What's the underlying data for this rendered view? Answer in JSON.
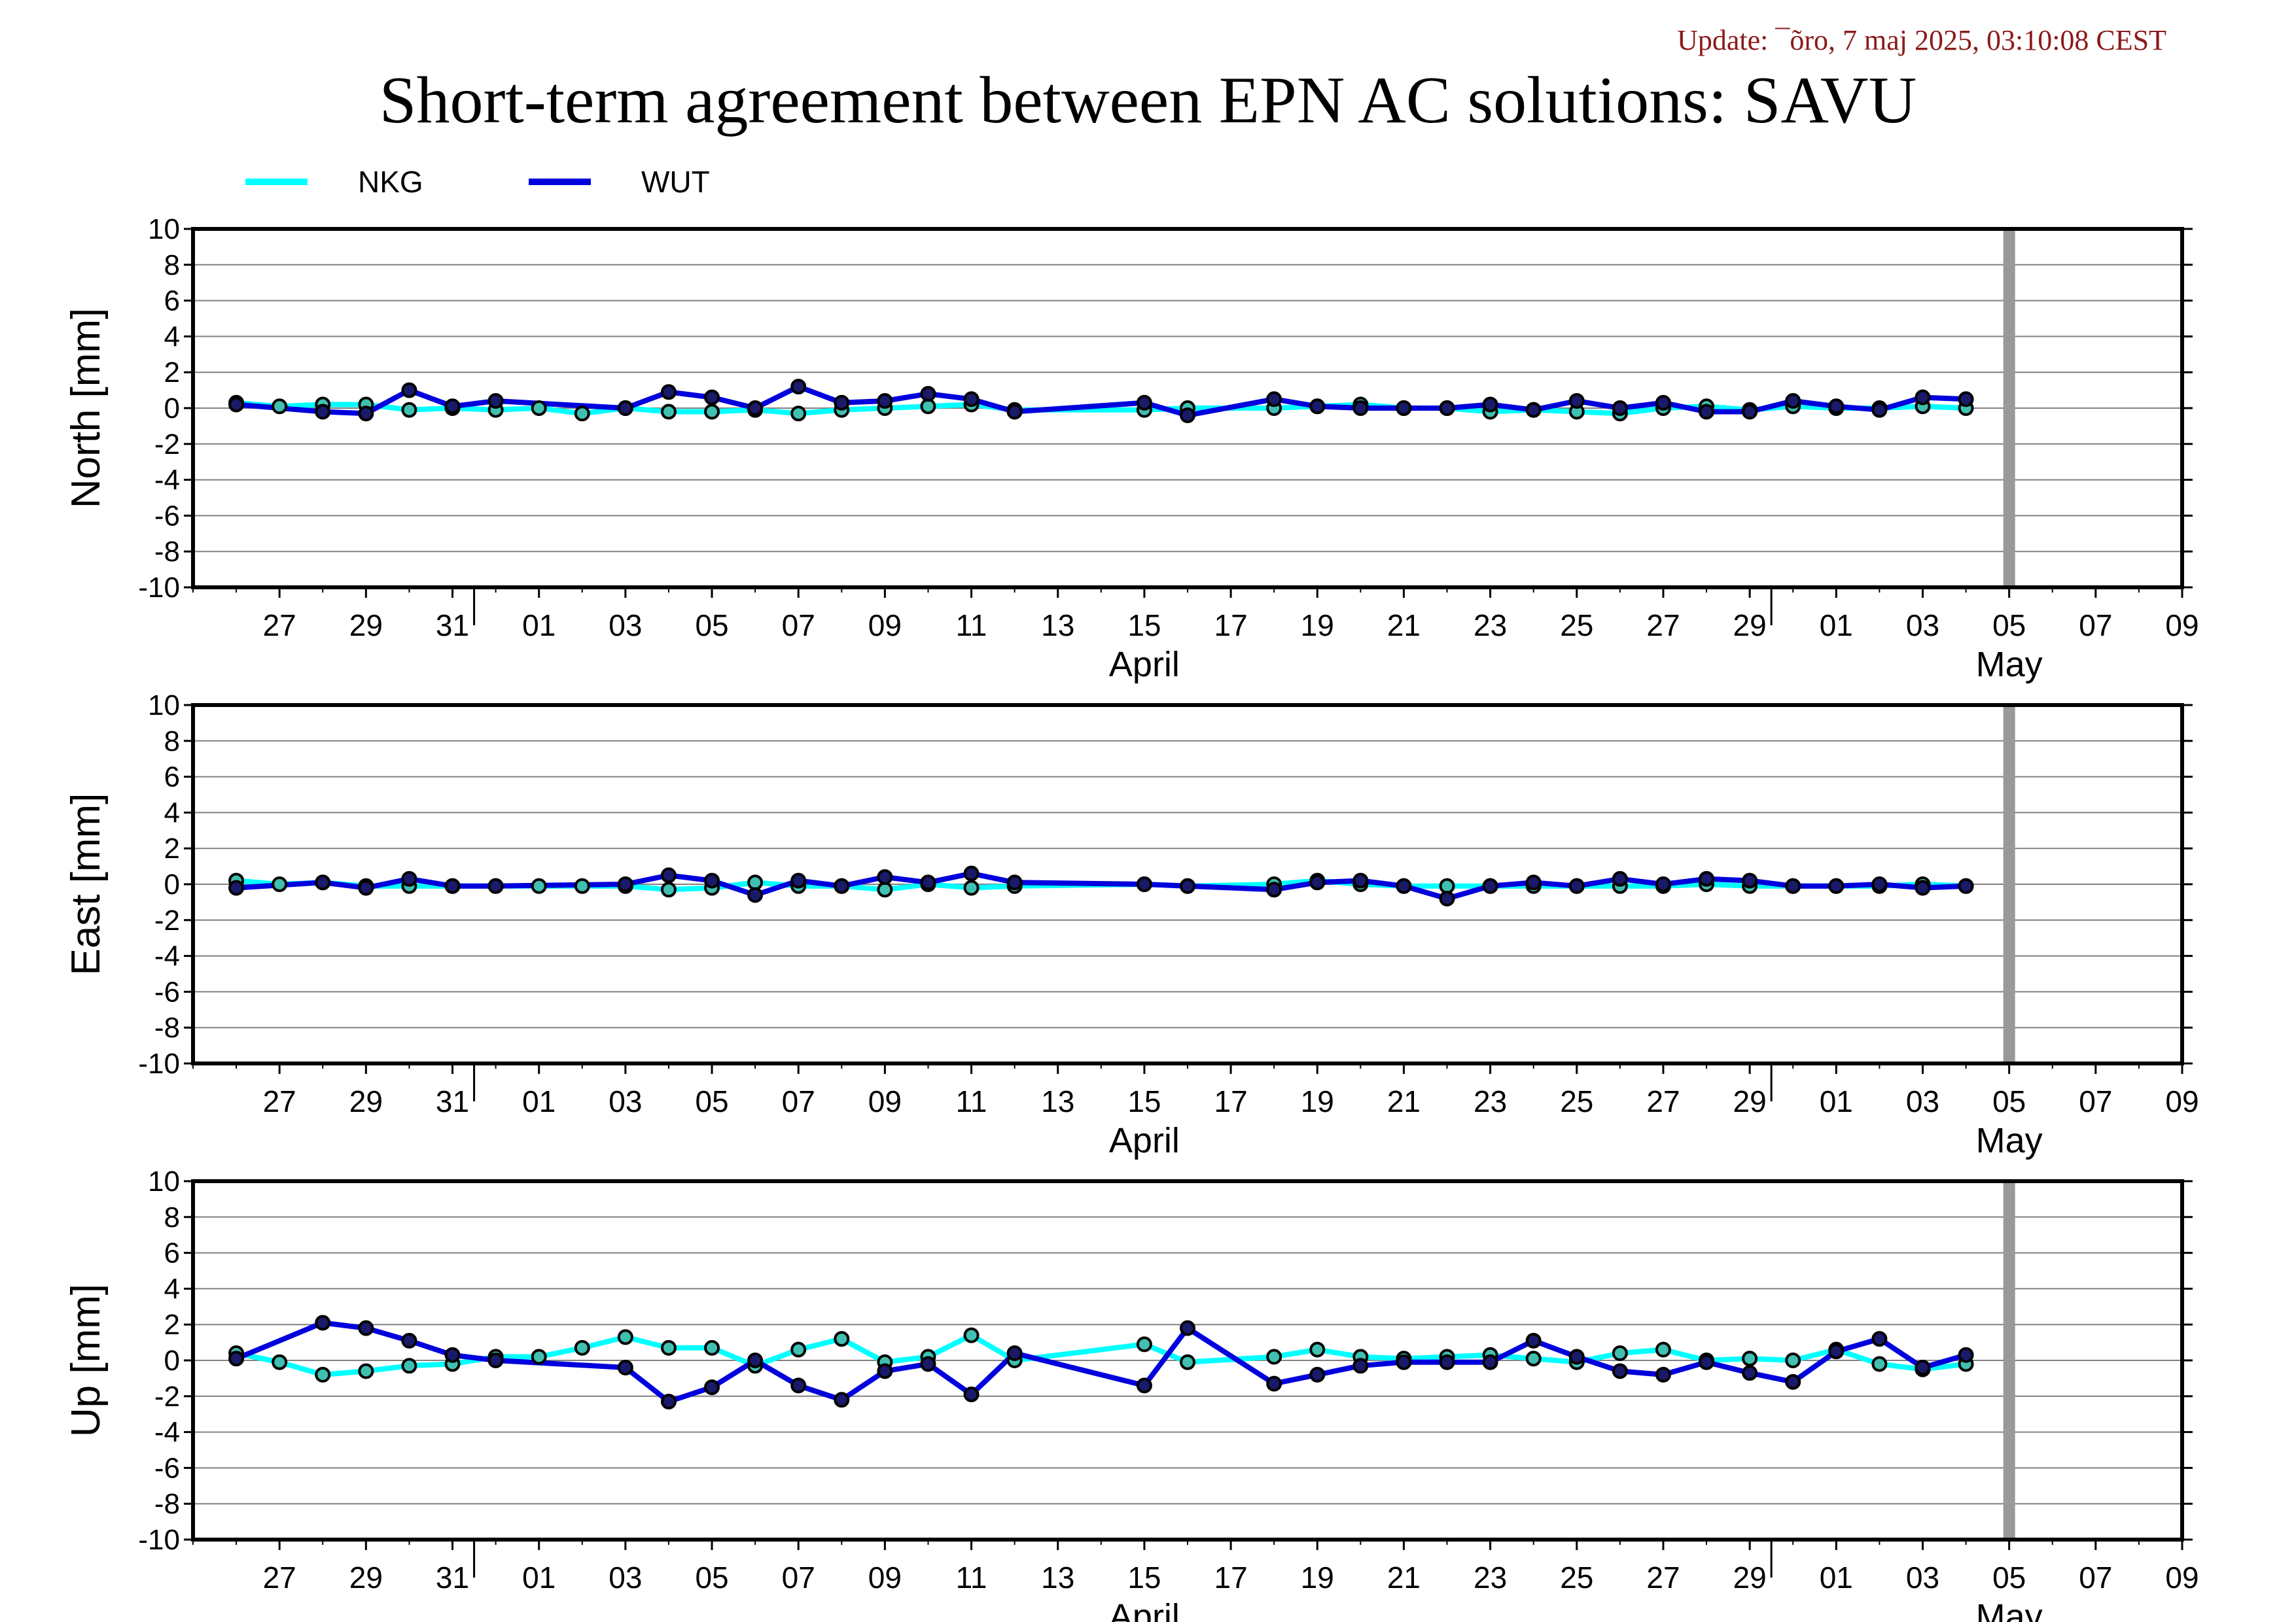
{
  "header": {
    "update_text": "Update: ¯õro, 7 maj 2025, 03:10:08 CEST",
    "title": "Short-term agreement between EPN AC solutions: SAVU"
  },
  "colors": {
    "NKG": "#00ffff",
    "WUT": "#0000dd",
    "marker_edge": "#000000",
    "marker_fill_NKG": "#40c0b0",
    "marker_fill_WUT": "#1a1a6a",
    "now_line": "#999999",
    "grid": "#808080"
  },
  "chart_data": [
    {
      "type": "line",
      "ylabel": "North [mm]",
      "ylim": [
        -10,
        10
      ],
      "yticks": [
        "10",
        "8",
        "6",
        "4",
        "2",
        "0",
        "-2",
        "-4",
        "-6",
        "-8",
        "-10"
      ],
      "xlim": [
        "2025-03-25",
        "2025-05-10"
      ],
      "x_tick_labels": [
        "27",
        "29",
        "31",
        "01",
        "03",
        "05",
        "07",
        "09",
        "11",
        "13",
        "15",
        "17",
        "19",
        "21",
        "23",
        "25",
        "27",
        "29",
        "01",
        "03",
        "05",
        "07",
        "09"
      ],
      "month_labels": [
        "April",
        "May"
      ],
      "grid": true,
      "legend": "top-left",
      "now_marker": "2025-05-06",
      "series": [
        {
          "name": "NKG",
          "x": [
            "2025-03-26",
            "2025-03-27",
            "2025-03-28",
            "2025-03-29",
            "2025-03-30",
            "2025-03-31",
            "2025-04-01",
            "2025-04-02",
            "2025-04-03",
            "2025-04-04",
            "2025-04-05",
            "2025-04-06",
            "2025-04-07",
            "2025-04-08",
            "2025-04-09",
            "2025-04-10",
            "2025-04-11",
            "2025-04-12",
            "2025-04-13",
            "2025-04-16",
            "2025-04-17",
            "2025-04-19",
            "2025-04-20",
            "2025-04-21",
            "2025-04-22",
            "2025-04-23",
            "2025-04-24",
            "2025-04-25",
            "2025-04-26",
            "2025-04-27",
            "2025-04-28",
            "2025-04-29",
            "2025-04-30",
            "2025-05-01",
            "2025-05-02",
            "2025-05-03",
            "2025-05-04",
            "2025-05-05"
          ],
          "values": [
            0.3,
            0.1,
            0.2,
            0.2,
            -0.1,
            0.0,
            -0.1,
            0.0,
            -0.3,
            0.0,
            -0.2,
            -0.2,
            -0.1,
            -0.3,
            -0.1,
            0.0,
            0.1,
            0.2,
            -0.1,
            -0.1,
            0.0,
            0.0,
            0.1,
            0.2,
            0.0,
            0.0,
            -0.2,
            -0.1,
            -0.2,
            -0.3,
            0.0,
            0.1,
            -0.1,
            0.1,
            0.0,
            0.0,
            0.1,
            0.0
          ]
        },
        {
          "name": "WUT",
          "x": [
            "2025-03-26",
            "2025-03-28",
            "2025-03-29",
            "2025-03-30",
            "2025-03-31",
            "2025-04-01",
            "2025-04-04",
            "2025-04-05",
            "2025-04-06",
            "2025-04-07",
            "2025-04-08",
            "2025-04-09",
            "2025-04-10",
            "2025-04-11",
            "2025-04-12",
            "2025-04-13",
            "2025-04-16",
            "2025-04-17",
            "2025-04-19",
            "2025-04-20",
            "2025-04-21",
            "2025-04-22",
            "2025-04-23",
            "2025-04-24",
            "2025-04-25",
            "2025-04-26",
            "2025-04-27",
            "2025-04-28",
            "2025-04-29",
            "2025-04-30",
            "2025-05-01",
            "2025-05-02",
            "2025-05-03",
            "2025-05-04",
            "2025-05-05"
          ],
          "values": [
            0.2,
            -0.2,
            -0.3,
            1.0,
            0.1,
            0.4,
            0.0,
            0.9,
            0.6,
            0.0,
            1.2,
            0.3,
            0.4,
            0.8,
            0.5,
            -0.2,
            0.3,
            -0.4,
            0.5,
            0.1,
            0.0,
            0.0,
            0.0,
            0.2,
            -0.1,
            0.4,
            0.0,
            0.3,
            -0.2,
            -0.2,
            0.4,
            0.1,
            -0.1,
            0.6,
            0.5
          ]
        }
      ]
    },
    {
      "type": "line",
      "ylabel": "East [mm]",
      "ylim": [
        -10,
        10
      ],
      "yticks": [
        "10",
        "8",
        "6",
        "4",
        "2",
        "0",
        "-2",
        "-4",
        "-6",
        "-8",
        "-10"
      ],
      "xlim": [
        "2025-03-25",
        "2025-05-10"
      ],
      "x_tick_labels": [
        "27",
        "29",
        "31",
        "01",
        "03",
        "05",
        "07",
        "09",
        "11",
        "13",
        "15",
        "17",
        "19",
        "21",
        "23",
        "25",
        "27",
        "29",
        "01",
        "03",
        "05",
        "07",
        "09"
      ],
      "month_labels": [
        "April",
        "May"
      ],
      "grid": true,
      "now_marker": "2025-05-06",
      "series": [
        {
          "name": "NKG",
          "x": [
            "2025-03-26",
            "2025-03-27",
            "2025-03-28",
            "2025-03-29",
            "2025-03-30",
            "2025-03-31",
            "2025-04-01",
            "2025-04-02",
            "2025-04-03",
            "2025-04-04",
            "2025-04-05",
            "2025-04-06",
            "2025-04-07",
            "2025-04-08",
            "2025-04-09",
            "2025-04-10",
            "2025-04-11",
            "2025-04-12",
            "2025-04-13",
            "2025-04-16",
            "2025-04-17",
            "2025-04-19",
            "2025-04-20",
            "2025-04-21",
            "2025-04-22",
            "2025-04-23",
            "2025-04-24",
            "2025-04-25",
            "2025-04-26",
            "2025-04-27",
            "2025-04-28",
            "2025-04-29",
            "2025-04-30",
            "2025-05-01",
            "2025-05-02",
            "2025-05-03",
            "2025-05-04",
            "2025-05-05"
          ],
          "values": [
            0.2,
            0.0,
            0.1,
            -0.1,
            -0.1,
            -0.1,
            -0.1,
            -0.1,
            -0.1,
            -0.1,
            -0.3,
            -0.2,
            0.1,
            -0.1,
            -0.1,
            -0.3,
            0.0,
            -0.2,
            -0.1,
            0.0,
            -0.1,
            0.0,
            0.2,
            0.0,
            -0.1,
            -0.1,
            -0.1,
            -0.1,
            -0.1,
            -0.1,
            -0.1,
            0.0,
            -0.1,
            -0.1,
            -0.1,
            -0.1,
            0.0,
            -0.1
          ]
        },
        {
          "name": "WUT",
          "x": [
            "2025-03-26",
            "2025-03-28",
            "2025-03-29",
            "2025-03-30",
            "2025-03-31",
            "2025-04-01",
            "2025-04-04",
            "2025-04-05",
            "2025-04-06",
            "2025-04-07",
            "2025-04-08",
            "2025-04-09",
            "2025-04-10",
            "2025-04-11",
            "2025-04-12",
            "2025-04-13",
            "2025-04-16",
            "2025-04-17",
            "2025-04-19",
            "2025-04-20",
            "2025-04-21",
            "2025-04-22",
            "2025-04-23",
            "2025-04-24",
            "2025-04-25",
            "2025-04-26",
            "2025-04-27",
            "2025-04-28",
            "2025-04-29",
            "2025-04-30",
            "2025-05-01",
            "2025-05-02",
            "2025-05-03",
            "2025-05-04",
            "2025-05-05"
          ],
          "values": [
            -0.2,
            0.1,
            -0.2,
            0.3,
            -0.1,
            -0.1,
            0.0,
            0.5,
            0.2,
            -0.6,
            0.2,
            -0.1,
            0.4,
            0.1,
            0.6,
            0.1,
            0.0,
            -0.1,
            -0.3,
            0.1,
            0.2,
            -0.1,
            -0.8,
            -0.1,
            0.1,
            -0.1,
            0.3,
            0.0,
            0.3,
            0.2,
            -0.1,
            -0.1,
            0.0,
            -0.2,
            -0.1
          ]
        }
      ]
    },
    {
      "type": "line",
      "ylabel": "Up [mm]",
      "ylim": [
        -10,
        10
      ],
      "yticks": [
        "10",
        "8",
        "6",
        "4",
        "2",
        "0",
        "-2",
        "-4",
        "-6",
        "-8",
        "-10"
      ],
      "xlim": [
        "2025-03-25",
        "2025-05-10"
      ],
      "x_tick_labels": [
        "27",
        "29",
        "31",
        "01",
        "03",
        "05",
        "07",
        "09",
        "11",
        "13",
        "15",
        "17",
        "19",
        "21",
        "23",
        "25",
        "27",
        "29",
        "01",
        "03",
        "05",
        "07",
        "09"
      ],
      "month_labels": [
        "April",
        "May"
      ],
      "grid": true,
      "now_marker": "2025-05-06",
      "series": [
        {
          "name": "NKG",
          "x": [
            "2025-03-26",
            "2025-03-27",
            "2025-03-28",
            "2025-03-29",
            "2025-03-30",
            "2025-03-31",
            "2025-04-01",
            "2025-04-02",
            "2025-04-03",
            "2025-04-04",
            "2025-04-05",
            "2025-04-06",
            "2025-04-07",
            "2025-04-08",
            "2025-04-09",
            "2025-04-10",
            "2025-04-11",
            "2025-04-12",
            "2025-04-13",
            "2025-04-16",
            "2025-04-17",
            "2025-04-19",
            "2025-04-20",
            "2025-04-21",
            "2025-04-22",
            "2025-04-23",
            "2025-04-24",
            "2025-04-25",
            "2025-04-26",
            "2025-04-27",
            "2025-04-28",
            "2025-04-29",
            "2025-04-30",
            "2025-05-01",
            "2025-05-02",
            "2025-05-03",
            "2025-05-04",
            "2025-05-05"
          ],
          "values": [
            0.4,
            -0.1,
            -0.8,
            -0.6,
            -0.3,
            -0.2,
            0.2,
            0.2,
            0.7,
            1.3,
            0.7,
            0.7,
            -0.3,
            0.6,
            1.2,
            -0.1,
            0.2,
            1.4,
            0.0,
            0.9,
            -0.1,
            0.2,
            0.6,
            0.2,
            0.1,
            0.2,
            0.3,
            0.1,
            -0.1,
            0.4,
            0.6,
            0.0,
            0.1,
            0.0,
            0.6,
            -0.2,
            -0.5,
            -0.2
          ]
        },
        {
          "name": "WUT",
          "x": [
            "2025-03-26",
            "2025-03-28",
            "2025-03-29",
            "2025-03-30",
            "2025-03-31",
            "2025-04-01",
            "2025-04-04",
            "2025-04-05",
            "2025-04-06",
            "2025-04-07",
            "2025-04-08",
            "2025-04-09",
            "2025-04-10",
            "2025-04-11",
            "2025-04-12",
            "2025-04-13",
            "2025-04-16",
            "2025-04-17",
            "2025-04-19",
            "2025-04-20",
            "2025-04-21",
            "2025-04-22",
            "2025-04-23",
            "2025-04-24",
            "2025-04-25",
            "2025-04-26",
            "2025-04-27",
            "2025-04-28",
            "2025-04-29",
            "2025-04-30",
            "2025-05-01",
            "2025-05-02",
            "2025-05-03",
            "2025-05-04",
            "2025-05-05"
          ],
          "values": [
            0.1,
            2.1,
            1.8,
            1.1,
            0.3,
            0.0,
            -0.4,
            -2.3,
            -1.5,
            0.0,
            -1.4,
            -2.2,
            -0.6,
            -0.2,
            -1.9,
            0.4,
            -1.4,
            1.8,
            -1.3,
            -0.8,
            -0.3,
            -0.1,
            -0.1,
            -0.1,
            1.1,
            0.2,
            -0.6,
            -0.8,
            -0.1,
            -0.7,
            -1.2,
            0.5,
            1.2,
            -0.4,
            0.3
          ]
        }
      ]
    }
  ]
}
